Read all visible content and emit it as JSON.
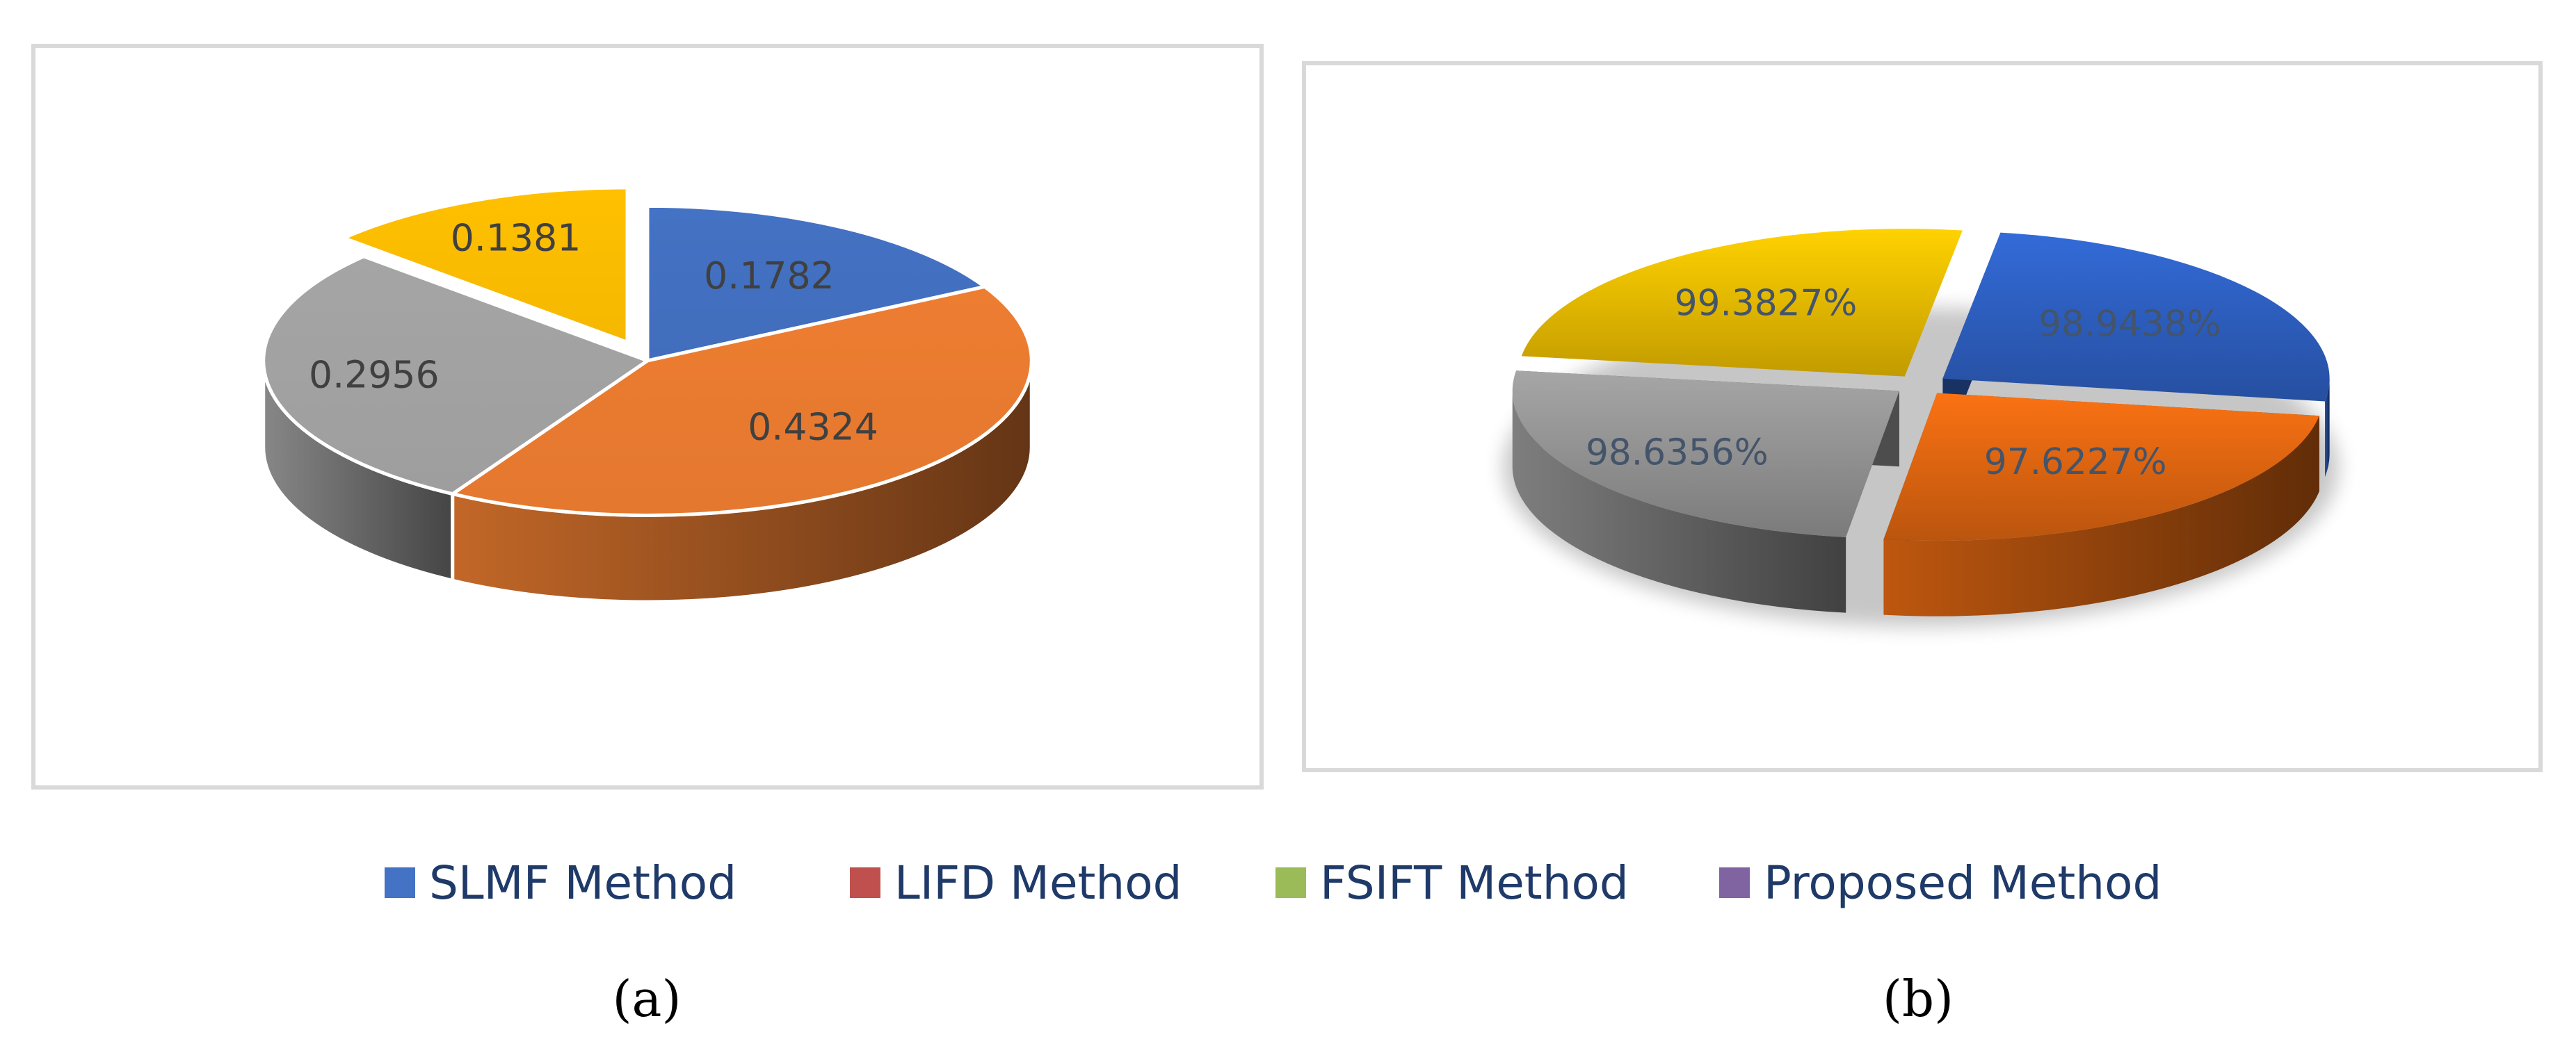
{
  "chart_data": [
    {
      "type": "pie",
      "panel_label": "(a)",
      "values": [
        0.1782,
        0.4324,
        0.2956,
        0.1381
      ],
      "labels": [
        "0.1782",
        "0.4324",
        "0.2956",
        "0.1381"
      ],
      "colors": [
        "#4472c4",
        "#ed7d31",
        "#a5a5a5",
        "#ffc000"
      ],
      "exploded": [
        false,
        false,
        false,
        true
      ],
      "style": "3d"
    },
    {
      "type": "pie",
      "panel_label": "(b)",
      "values": [
        98.9438,
        97.6227,
        98.6356,
        99.3827
      ],
      "labels": [
        "98.9438%",
        "97.6227%",
        "98.6356%",
        "99.3827%"
      ],
      "colors": [
        "#2f63c8",
        "#e86a12",
        "#9a9a9a",
        "#f2c200"
      ],
      "exploded": [
        true,
        true,
        true,
        true
      ],
      "style": "3d"
    }
  ],
  "legend": [
    {
      "label": "SLMF Method",
      "color": "#4472c4"
    },
    {
      "label": "LIFD Method",
      "color": "#c0504d"
    },
    {
      "label": "FSIFT Method",
      "color": "#9bbb59"
    },
    {
      "label": "Proposed Method",
      "color": "#8064a2"
    }
  ],
  "captions": {
    "a": "(a)",
    "b": "(b)"
  }
}
